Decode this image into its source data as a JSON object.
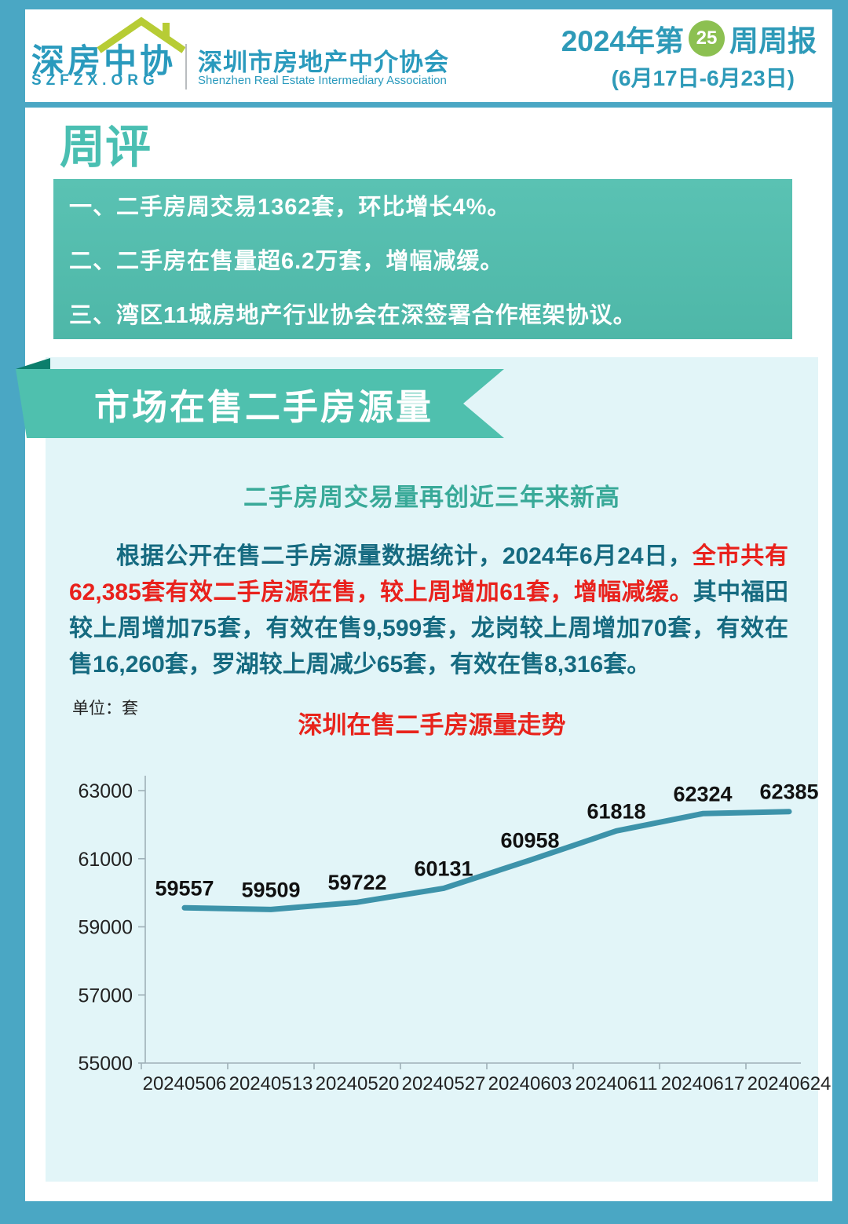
{
  "colors": {
    "frame": "#4aa7c4",
    "panel": "#e2f5f8",
    "brand_teal": "#2a9abd",
    "header_blue": "#2e9ab8",
    "badge_green": "#8cc051",
    "review_title_teal": "#4abfb2",
    "box_teal": "#54bdae",
    "ribbon_teal": "#4fc0ae",
    "ribbon_fold": "#0c7e6c",
    "subtitle_teal": "#38a998",
    "body_teal": "#156a80",
    "highlight_red": "#e9211c",
    "house_green": "#b7cc35",
    "chart_line": "#3d93aa"
  },
  "header": {
    "logo_cn": "深房中协",
    "logo_url": "SZFZX.ORG",
    "org_cn": "深圳市房地产中介协会",
    "org_en": "Shenzhen Real Estate Intermediary Association",
    "title_prefix": "2024年第",
    "week_number": "25",
    "title_suffix": "周周报",
    "date_range": "(6月17日-6月23日)"
  },
  "weekly_review": {
    "title": "周评",
    "items": [
      "一、二手房周交易1362套，环比增长4%。",
      "二、二手房在售量超6.2万套，增幅减缓。",
      "三、湾区11城房地产行业协会在深签署合作框架协议。"
    ]
  },
  "section": {
    "banner": "市场在售二手房源量",
    "subtitle": "二手房周交易量再创近三年来新高",
    "paragraph": [
      {
        "color": "teal",
        "text": "根据公开在售二手房源量数据统计，2024年6月24日，"
      },
      {
        "color": "red",
        "text": "全市共有62,385套有效二手房源在售，较上周增加61套，增幅减缓。"
      },
      {
        "color": "teal",
        "text": "其中福田较上周增加75套，有效在售9,599套，龙岗较上周增加70套，有效在售16,260套，罗湖较上周减少65套，有效在售8,316套。"
      }
    ]
  },
  "chart": {
    "unit_label": "单位：套"
  },
  "chart_data": {
    "type": "line",
    "title": "深圳在售二手房源量走势",
    "categories": [
      "20240506",
      "20240513",
      "20240520",
      "20240527",
      "20240603",
      "20240611",
      "20240617",
      "20240624"
    ],
    "values": [
      59557,
      59509,
      59722,
      60131,
      60958,
      61818,
      62324,
      62385
    ],
    "xlabel": "",
    "ylabel": "套",
    "ylim": [
      55000,
      63000
    ],
    "yticks": [
      55000,
      57000,
      59000,
      61000,
      63000
    ],
    "grid": false,
    "legend": "none",
    "line_color": "#3d93aa"
  }
}
